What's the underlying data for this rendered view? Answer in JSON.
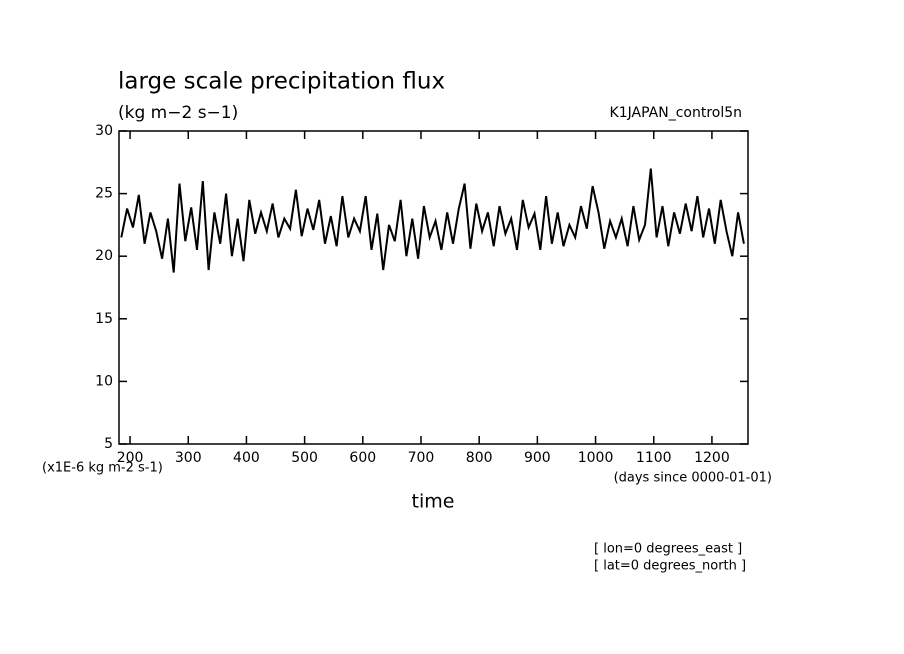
{
  "chart_data": {
    "type": "line",
    "title": "large scale precipitation flux",
    "subtitle": "(kg m−2 s−1)",
    "annotation_right": "K1JAPAN_control5n",
    "y_axis_label": "(x1E-6 kg m-2 s-1)",
    "x_axis_units": "(days since 0000-01-01)",
    "x_axis_label": "time",
    "notes": [
      "[ lon=0 degrees_east ]",
      "[ lat=0 degrees_north ]"
    ],
    "xlim": [
      181,
      1262
    ],
    "xticks": [
      200,
      300,
      400,
      500,
      600,
      700,
      800,
      900,
      1000,
      1100,
      1200
    ],
    "ylim": [
      5,
      30
    ],
    "yticks": [
      5,
      10,
      15,
      20,
      25,
      30
    ],
    "series": [
      {
        "color": "#000000",
        "x": [
          185,
          195,
          205,
          215,
          225,
          235,
          245,
          255,
          265,
          275,
          285,
          295,
          305,
          315,
          325,
          335,
          345,
          355,
          365,
          375,
          385,
          395,
          405,
          415,
          425,
          435,
          445,
          455,
          465,
          475,
          485,
          495,
          505,
          515,
          525,
          535,
          545,
          555,
          565,
          575,
          585,
          595,
          605,
          615,
          625,
          635,
          645,
          655,
          665,
          675,
          685,
          695,
          705,
          715,
          725,
          735,
          745,
          755,
          765,
          775,
          785,
          795,
          805,
          815,
          825,
          835,
          845,
          855,
          865,
          875,
          885,
          895,
          905,
          915,
          925,
          935,
          945,
          955,
          965,
          975,
          985,
          995,
          1005,
          1015,
          1025,
          1035,
          1045,
          1055,
          1065,
          1075,
          1085,
          1095,
          1105,
          1115,
          1125,
          1135,
          1145,
          1155,
          1165,
          1175,
          1185,
          1195,
          1205,
          1215,
          1225,
          1235,
          1245,
          1255
        ],
        "values": [
          21.5,
          23.8,
          22.3,
          24.9,
          21.0,
          23.5,
          22.0,
          19.8,
          23.0,
          18.7,
          25.8,
          21.2,
          23.9,
          20.5,
          26.0,
          18.9,
          23.5,
          21.0,
          25.0,
          20.0,
          23.0,
          19.6,
          24.5,
          21.8,
          23.5,
          22.0,
          24.2,
          21.5,
          23.0,
          22.2,
          25.3,
          21.6,
          23.8,
          22.1,
          24.5,
          21.0,
          23.2,
          20.8,
          24.8,
          21.5,
          23.0,
          22.0,
          24.8,
          20.5,
          23.4,
          18.9,
          22.5,
          21.2,
          24.5,
          20.0,
          23.0,
          19.8,
          24.0,
          21.5,
          22.8,
          20.5,
          23.5,
          21.0,
          23.8,
          25.8,
          20.6,
          24.2,
          22.0,
          23.5,
          20.8,
          24.0,
          21.8,
          23.0,
          20.5,
          24.5,
          22.3,
          23.4,
          20.5,
          24.8,
          21.0,
          23.5,
          20.8,
          22.5,
          21.5,
          24.0,
          22.2,
          25.6,
          23.5,
          20.6,
          22.8,
          21.5,
          23.0,
          20.8,
          24.0,
          21.3,
          22.5,
          27.0,
          21.5,
          24.0,
          20.8,
          23.5,
          21.8,
          24.2,
          22.0,
          24.8,
          21.5,
          23.8,
          21.0,
          24.5,
          22.0,
          20.0,
          23.5,
          21.0
        ]
      }
    ]
  }
}
